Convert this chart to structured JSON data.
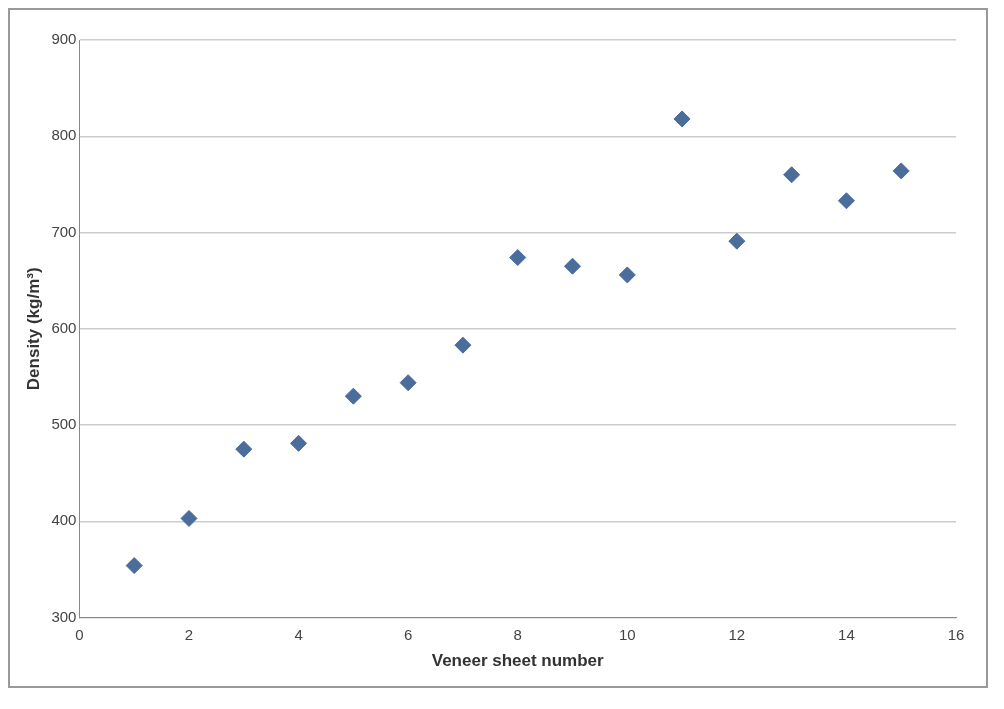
{
  "chart_data": {
    "type": "scatter",
    "xlabel": "Veneer sheet number",
    "ylabel": "Density (kg/m³)",
    "x": [
      1,
      2,
      3,
      4,
      5,
      6,
      7,
      8,
      9,
      10,
      11,
      12,
      13,
      14,
      15
    ],
    "series": [
      {
        "color": "#4a6d9c",
        "values": [
          354,
          403,
          475,
          481,
          530,
          544,
          583,
          674,
          665,
          656,
          818,
          691,
          760,
          733,
          764
        ]
      }
    ],
    "xlim": [
      0,
      16
    ],
    "xticks": [
      0,
      2,
      4,
      6,
      8,
      10,
      12,
      14,
      16
    ],
    "ylim": [
      300,
      900
    ],
    "yticks": [
      300,
      400,
      500,
      600,
      700,
      800,
      900
    ],
    "grid": "y",
    "marker": "diamond",
    "legend": false
  }
}
